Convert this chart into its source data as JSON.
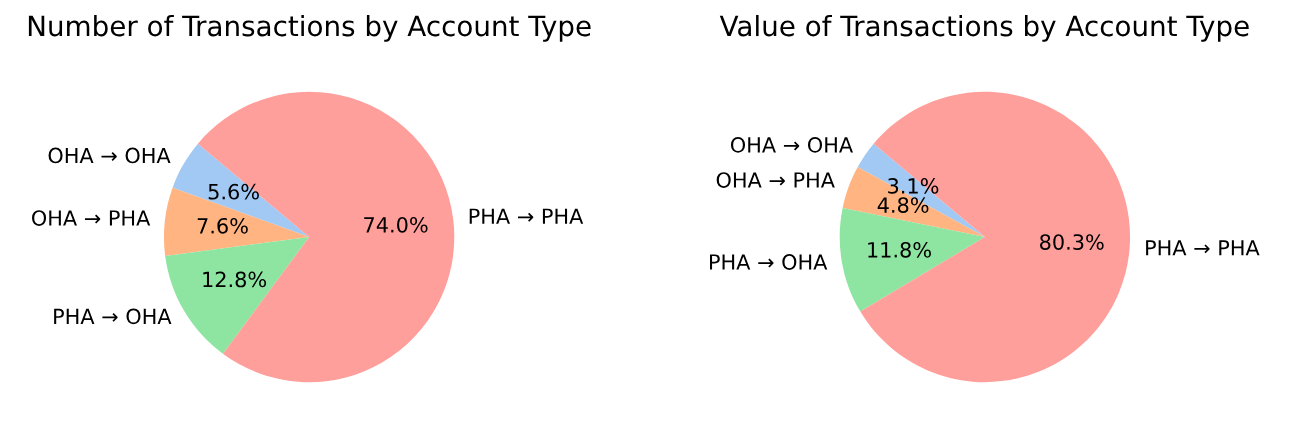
{
  "chart_data": [
    {
      "type": "pie",
      "title": "Number of Transactions by Account Type",
      "categories": [
        "OHA → OHA",
        "OHA → PHA",
        "PHA → OHA",
        "PHA → PHA"
      ],
      "values": [
        5.6,
        7.6,
        12.8,
        74.0
      ],
      "value_labels": [
        "5.6%",
        "7.6%",
        "12.8%",
        "74.0%"
      ],
      "colors": [
        "#a1c9f4",
        "#ffb482",
        "#8de5a1",
        "#ff9f9b"
      ]
    },
    {
      "type": "pie",
      "title": "Value of Transactions by Account Type",
      "categories": [
        "OHA → OHA",
        "OHA → PHA",
        "PHA → OHA",
        "PHA → PHA"
      ],
      "values": [
        3.1,
        4.8,
        11.8,
        80.3
      ],
      "value_labels": [
        "3.1%",
        "4.8%",
        "11.8%",
        "80.3%"
      ],
      "colors": [
        "#a1c9f4",
        "#ffb482",
        "#8de5a1",
        "#ff9f9b"
      ]
    }
  ]
}
